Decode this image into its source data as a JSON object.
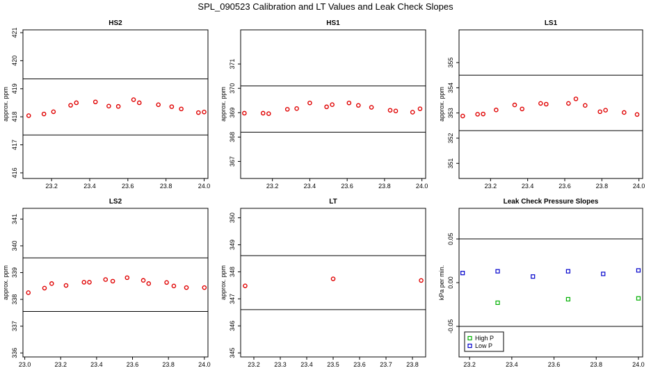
{
  "page_title": "SPL_090523  Calibration and LT Values and Leak Check Slopes",
  "colors": {
    "points": "#e00000",
    "high_p": "#00b000",
    "low_p": "#0000cc",
    "line": "#000000"
  },
  "chart_data": [
    {
      "type": "scatter",
      "title": "HS2",
      "ylabel": "approx. ppm",
      "xlim": [
        23.05,
        24.02
      ],
      "ylim": [
        415.8,
        421.1
      ],
      "xticks": [
        "23.2",
        "23.4",
        "23.6",
        "23.8",
        "24.0"
      ],
      "yticks": [
        "416",
        "417",
        "418",
        "419",
        "420",
        "421"
      ],
      "hlines": [
        419.35,
        417.35
      ],
      "series": [
        {
          "x": [
            23.08,
            23.16,
            23.21,
            23.3,
            23.33,
            23.43,
            23.5,
            23.55,
            23.63,
            23.66,
            23.76,
            23.83,
            23.88,
            23.97,
            24.0
          ],
          "y": [
            418.04,
            418.1,
            418.18,
            418.41,
            418.5,
            418.53,
            418.38,
            418.37,
            418.61,
            418.5,
            418.43,
            418.36,
            418.28,
            418.15,
            418.17
          ]
        }
      ]
    },
    {
      "type": "scatter",
      "title": "HS1",
      "ylabel": "approx. ppm",
      "xlim": [
        23.03,
        24.02
      ],
      "ylim": [
        366.3,
        372.4
      ],
      "xticks": [
        "23.2",
        "23.4",
        "23.6",
        "23.8",
        "24.0"
      ],
      "yticks": [
        "367",
        "368",
        "369",
        "370",
        "371"
      ],
      "hlines": [
        370.1,
        368.2
      ],
      "series": [
        {
          "x": [
            23.05,
            23.15,
            23.18,
            23.28,
            23.33,
            23.4,
            23.49,
            23.52,
            23.61,
            23.66,
            23.73,
            23.83,
            23.86,
            23.95,
            23.99
          ],
          "y": [
            368.98,
            368.98,
            368.96,
            369.14,
            369.17,
            369.4,
            369.24,
            369.33,
            369.4,
            369.3,
            369.22,
            369.1,
            369.07,
            369.02,
            369.16
          ]
        }
      ]
    },
    {
      "type": "scatter",
      "title": "LS1",
      "ylabel": "approx. ppm",
      "xlim": [
        23.03,
        24.02
      ],
      "ylim": [
        350.4,
        356.3
      ],
      "xticks": [
        "23.2",
        "23.4",
        "23.6",
        "23.8",
        "24.0"
      ],
      "yticks": [
        "351",
        "352",
        "353",
        "354",
        "355"
      ],
      "hlines": [
        354.5,
        352.3
      ],
      "series": [
        {
          "x": [
            23.05,
            23.13,
            23.16,
            23.23,
            23.33,
            23.37,
            23.47,
            23.5,
            23.62,
            23.66,
            23.71,
            23.79,
            23.82,
            23.92,
            23.99
          ],
          "y": [
            352.88,
            352.95,
            352.96,
            353.12,
            353.32,
            353.16,
            353.38,
            353.35,
            353.38,
            353.56,
            353.3,
            353.05,
            353.11,
            353.02,
            352.94
          ]
        }
      ]
    },
    {
      "type": "scatter",
      "title": "LS2",
      "ylabel": "approx. ppm",
      "xlim": [
        22.99,
        24.02
      ],
      "ylim": [
        335.85,
        341.4
      ],
      "xticks": [
        "23.0",
        "23.2",
        "23.4",
        "23.6",
        "23.8",
        "24.0"
      ],
      "yticks": [
        "336",
        "337",
        "338",
        "339",
        "340",
        "341"
      ],
      "hlines": [
        339.55,
        337.55
      ],
      "series": [
        {
          "x": [
            23.02,
            23.11,
            23.15,
            23.23,
            23.33,
            23.36,
            23.45,
            23.49,
            23.57,
            23.66,
            23.69,
            23.79,
            23.83,
            23.9,
            24.0
          ],
          "y": [
            338.25,
            338.42,
            338.59,
            338.52,
            338.64,
            338.64,
            338.74,
            338.68,
            338.81,
            338.71,
            338.59,
            338.63,
            338.5,
            338.44,
            338.44
          ]
        }
      ]
    },
    {
      "type": "scatter",
      "title": "LT",
      "ylabel": "approx. ppm",
      "xlim": [
        23.15,
        23.85
      ],
      "ylim": [
        344.85,
        350.35
      ],
      "xticks": [
        "23.2",
        "23.3",
        "23.4",
        "23.5",
        "23.6",
        "23.7",
        "23.8"
      ],
      "yticks": [
        "345",
        "346",
        "347",
        "348",
        "349",
        "350"
      ],
      "hlines": [
        348.6,
        346.6
      ],
      "series": [
        {
          "x": [
            23.167,
            23.5,
            23.833
          ],
          "y": [
            347.48,
            347.74,
            347.68
          ]
        }
      ]
    },
    {
      "type": "scatter",
      "title": "Leak Check Pressure Slopes",
      "ylabel": "kPa per min.",
      "xlim": [
        23.15,
        24.02
      ],
      "ylim": [
        -0.085,
        0.085
      ],
      "xticks": [
        "23.2",
        "23.4",
        "23.6",
        "23.8",
        "24.0"
      ],
      "yticks": [
        "-0.05",
        "0.00",
        "0.05"
      ],
      "hlines": [
        0.05,
        -0.05
      ],
      "legend": {
        "position": "bottom-left"
      },
      "series": [
        {
          "name": "High P",
          "color": "#00b000",
          "x": [
            23.333,
            23.667,
            24.0
          ],
          "y": [
            -0.023,
            -0.019,
            -0.018
          ]
        },
        {
          "name": "Low P",
          "color": "#0000cc",
          "x": [
            23.167,
            23.333,
            23.5,
            23.667,
            23.833,
            24.0
          ],
          "y": [
            0.011,
            0.013,
            0.007,
            0.013,
            0.01,
            0.014
          ]
        }
      ]
    }
  ]
}
